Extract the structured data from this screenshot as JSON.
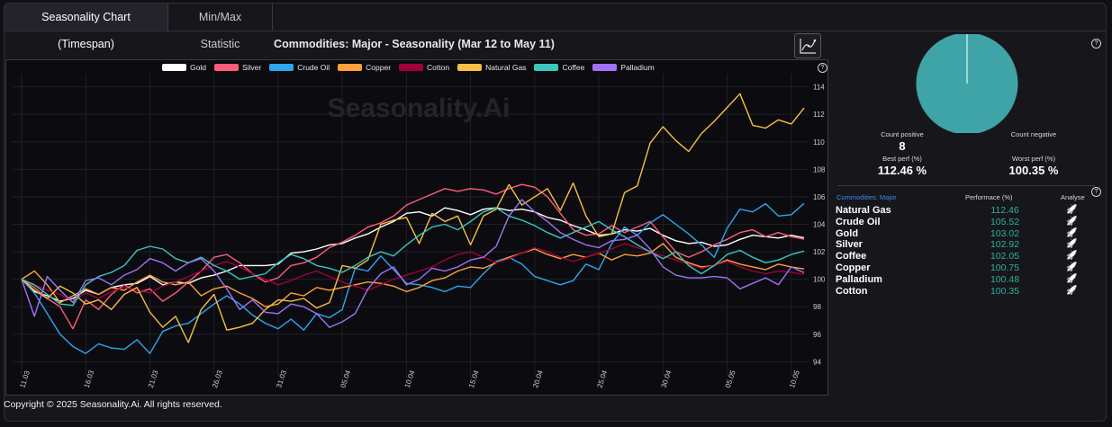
{
  "tabs": [
    {
      "label": "Seasonality Chart (Timespan)"
    },
    {
      "label": "Min/Max Statistic"
    }
  ],
  "watermark": "Seasonality.Ai",
  "footer": {
    "copyright": "Copyright © 2025 Seasonality.Ai. All rights reserved."
  },
  "help_glyph": "?",
  "colors": {
    "positive": "#2bb39a",
    "pie": "#3fa4a8"
  },
  "stats": {
    "count_positive_label": "Count positive",
    "count_positive": "8",
    "count_negative_label": "Count negative",
    "count_negative": "",
    "best_label": "Best perf (%)",
    "best_value": "112.46 %",
    "worst_label": "Worst perf (%)",
    "worst_value": "100.35 %"
  },
  "pie": {
    "positive": 8,
    "negative": 0
  },
  "table": {
    "col_group": "Commodities: Major",
    "col_perf": "Performace (%)",
    "col_analyse": "Analyse",
    "analyse_icon": "rocket-icon",
    "rows": [
      {
        "name": "Natural Gas",
        "perf": "112.46"
      },
      {
        "name": "Crude Oil",
        "perf": "105.52"
      },
      {
        "name": "Gold",
        "perf": "103.02"
      },
      {
        "name": "Silver",
        "perf": "102.92"
      },
      {
        "name": "Coffee",
        "perf": "102.05"
      },
      {
        "name": "Copper",
        "perf": "100.75"
      },
      {
        "name": "Palladium",
        "perf": "100.48"
      },
      {
        "name": "Cotton",
        "perf": "100.35"
      }
    ]
  },
  "chart_data": {
    "type": "line",
    "title": "Commodities: Major - Seasonality (Mar 12 to May 11)",
    "xlabel": "",
    "ylabel": "",
    "ylim": [
      93.5,
      114.5
    ],
    "yticks": [
      94,
      96,
      98,
      100,
      102,
      104,
      106,
      108,
      110,
      112,
      114
    ],
    "x": [
      "11.03",
      "12.03",
      "13.03",
      "14.03",
      "15.03",
      "16.03",
      "17.03",
      "18.03",
      "19.03",
      "20.03",
      "21.03",
      "22.03",
      "23.03",
      "24.03",
      "25.03",
      "26.03",
      "27.03",
      "28.03",
      "29.03",
      "30.03",
      "31.03",
      "01.04",
      "02.04",
      "03.04",
      "04.04",
      "05.04",
      "06.04",
      "07.04",
      "08.04",
      "09.04",
      "10.04",
      "11.04",
      "12.04",
      "13.04",
      "14.04",
      "15.04",
      "16.04",
      "17.04",
      "18.04",
      "19.04",
      "20.04",
      "21.04",
      "22.04",
      "23.04",
      "24.04",
      "25.04",
      "26.04",
      "27.04",
      "28.04",
      "29.04",
      "30.04",
      "01.05",
      "02.05",
      "03.05",
      "04.05",
      "05.05",
      "06.05",
      "07.05",
      "08.05",
      "09.05",
      "10.05",
      "11.05"
    ],
    "xticks": [
      "11.03",
      "16.03",
      "21.03",
      "26.03",
      "31.03",
      "05.04",
      "10.04",
      "15.04",
      "20.04",
      "25.04",
      "30.04",
      "05.05",
      "10.05"
    ],
    "grid": true,
    "legend_position": "top",
    "series": [
      {
        "name": "Gold",
        "color": "#ffffff",
        "values": [
          100.0,
          99.1,
          98.8,
          98.4,
          98.6,
          99.2,
          98.9,
          99.4,
          99.6,
          99.7,
          100.2,
          99.6,
          99.8,
          99.7,
          100.1,
          100.3,
          100.6,
          101.0,
          101.0,
          101.0,
          101.1,
          101.9,
          102.0,
          102.2,
          102.5,
          102.6,
          103.0,
          103.3,
          103.8,
          104.2,
          104.8,
          104.9,
          104.6,
          105.2,
          105.0,
          104.7,
          105.1,
          105.2,
          105.0,
          105.1,
          104.9,
          104.5,
          104.3,
          103.9,
          103.6,
          103.2,
          103.3,
          103.6,
          103.5,
          103.7,
          103.2,
          102.8,
          102.6,
          102.7,
          102.4,
          102.5,
          102.9,
          103.2,
          103.1,
          103.0,
          103.2,
          103.02
        ]
      },
      {
        "name": "Silver",
        "color": "#ff5c7a",
        "values": [
          100.0,
          99.4,
          98.6,
          98.0,
          96.4,
          98.5,
          97.8,
          98.9,
          99.6,
          99.0,
          99.3,
          98.4,
          99.0,
          99.8,
          100.6,
          101.6,
          101.8,
          101.2,
          100.4,
          99.8,
          100.1,
          101.0,
          101.2,
          101.6,
          102.3,
          102.7,
          103.2,
          103.8,
          104.1,
          104.6,
          105.4,
          105.8,
          106.2,
          106.6,
          106.4,
          106.6,
          106.5,
          106.2,
          106.6,
          106.9,
          106.7,
          106.0,
          104.8,
          103.6,
          103.2,
          103.3,
          103.9,
          103.4,
          103.8,
          104.2,
          103.1,
          102.0,
          101.6,
          102.0,
          102.5,
          102.9,
          103.4,
          103.6,
          103.1,
          103.4,
          103.1,
          102.92
        ]
      },
      {
        "name": "Crude Oil",
        "color": "#2fa5f0",
        "values": [
          100.0,
          99.0,
          97.5,
          96.0,
          95.1,
          94.6,
          95.3,
          95.0,
          94.9,
          95.6,
          94.6,
          96.2,
          96.6,
          96.8,
          97.5,
          98.2,
          98.8,
          98.2,
          97.4,
          96.8,
          96.4,
          97.1,
          96.3,
          97.5,
          97.2,
          97.8,
          100.8,
          100.6,
          101.7,
          100.7,
          99.7,
          99.6,
          99.4,
          99.1,
          99.5,
          99.4,
          100.4,
          101.3,
          101.6,
          101.1,
          100.2,
          99.9,
          99.6,
          99.9,
          101.1,
          100.7,
          102.6,
          103.8,
          103.2,
          104.1,
          104.7,
          104.0,
          103.3,
          102.5,
          101.6,
          103.7,
          105.1,
          104.9,
          105.5,
          104.6,
          104.7,
          105.52
        ]
      },
      {
        "name": "Copper",
        "color": "#ffa03a",
        "values": [
          100.0,
          100.6,
          99.6,
          98.3,
          98.8,
          99.3,
          98.9,
          99.4,
          99.2,
          99.8,
          100.3,
          99.8,
          99.6,
          99.8,
          98.8,
          99.3,
          99.5,
          99.0,
          98.6,
          98.0,
          98.2,
          99.0,
          98.8,
          99.4,
          99.2,
          99.4,
          99.6,
          99.8,
          99.7,
          99.5,
          99.1,
          99.4,
          99.9,
          100.1,
          100.6,
          100.9,
          100.8,
          101.2,
          101.6,
          101.9,
          102.2,
          101.8,
          101.5,
          101.8,
          101.6,
          101.9,
          101.4,
          101.8,
          101.7,
          101.9,
          102.6,
          101.6,
          101.2,
          100.9,
          101.0,
          101.4,
          101.1,
          100.9,
          100.7,
          101.1,
          100.9,
          100.75
        ]
      },
      {
        "name": "Cotton",
        "color": "#a0003c",
        "values": [
          100.0,
          99.6,
          99.2,
          98.9,
          98.4,
          99.0,
          98.6,
          99.1,
          99.4,
          99.2,
          99.0,
          99.5,
          99.8,
          100.2,
          100.6,
          101.0,
          101.3,
          100.9,
          100.4,
          100.0,
          99.6,
          99.9,
          100.3,
          100.6,
          100.2,
          99.8,
          99.5,
          99.2,
          99.6,
          100.0,
          100.3,
          100.6,
          100.9,
          101.4,
          101.8,
          102.0,
          101.6,
          101.2,
          101.5,
          101.9,
          102.3,
          102.0,
          101.6,
          101.3,
          101.6,
          101.9,
          102.2,
          102.6,
          102.3,
          102.0,
          101.7,
          101.4,
          101.1,
          100.8,
          101.0,
          101.3,
          100.9,
          100.6,
          100.4,
          100.6,
          100.5,
          100.35
        ]
      },
      {
        "name": "Natural Gas",
        "color": "#f6c044",
        "values": [
          100.0,
          99.2,
          98.6,
          99.5,
          99.0,
          98.2,
          98.5,
          97.8,
          98.9,
          99.4,
          97.6,
          96.5,
          97.3,
          95.4,
          97.8,
          98.9,
          96.3,
          96.5,
          96.8,
          97.8,
          98.5,
          98.4,
          98.6,
          97.9,
          98.3,
          101.0,
          100.8,
          101.4,
          104.0,
          104.3,
          104.5,
          102.6,
          104.8,
          104.2,
          104.6,
          102.5,
          104.6,
          105.1,
          106.9,
          105.4,
          106.0,
          106.6,
          105.0,
          107.0,
          104.6,
          103.1,
          103.3,
          106.3,
          106.8,
          109.9,
          111.1,
          110.1,
          109.3,
          110.6,
          111.5,
          112.5,
          113.5,
          111.2,
          111.0,
          111.6,
          111.3,
          112.46
        ]
      },
      {
        "name": "Coffee",
        "color": "#3cc6bf",
        "values": [
          100.0,
          99.6,
          98.9,
          98.2,
          98.1,
          99.6,
          100.2,
          100.5,
          101.0,
          102.1,
          102.4,
          102.2,
          101.5,
          101.2,
          101.6,
          101.0,
          100.6,
          100.0,
          100.2,
          100.4,
          101.2,
          101.8,
          101.5,
          101.0,
          100.8,
          100.5,
          101.0,
          101.6,
          102.0,
          101.7,
          102.5,
          103.2,
          103.8,
          104.0,
          103.6,
          104.2,
          104.9,
          105.2,
          104.6,
          104.3,
          103.9,
          103.4,
          103.0,
          103.4,
          103.8,
          104.2,
          103.6,
          103.1,
          102.5,
          102.0,
          101.5,
          102.0,
          101.0,
          100.4,
          101.0,
          101.8,
          102.1,
          101.6,
          101.2,
          101.4,
          101.8,
          102.05
        ]
      },
      {
        "name": "Palladium",
        "color": "#a172f7",
        "values": [
          100.0,
          97.3,
          100.2,
          99.2,
          98.3,
          99.9,
          100.1,
          99.6,
          100.3,
          100.7,
          101.5,
          101.2,
          100.6,
          101.2,
          101.5,
          100.6,
          99.3,
          97.8,
          98.5,
          97.6,
          97.5,
          98.2,
          98.0,
          97.5,
          96.5,
          96.9,
          97.5,
          99.3,
          100.4,
          100.9,
          99.6,
          100.0,
          100.8,
          100.6,
          100.9,
          101.4,
          101.6,
          102.4,
          104.6,
          105.8,
          104.9,
          104.2,
          103.4,
          102.9,
          102.5,
          102.3,
          102.8,
          102.9,
          103.2,
          102.2,
          100.9,
          100.3,
          100.1,
          100.1,
          100.2,
          100.1,
          99.3,
          99.7,
          100.1,
          99.6,
          100.9,
          100.48
        ]
      }
    ]
  }
}
